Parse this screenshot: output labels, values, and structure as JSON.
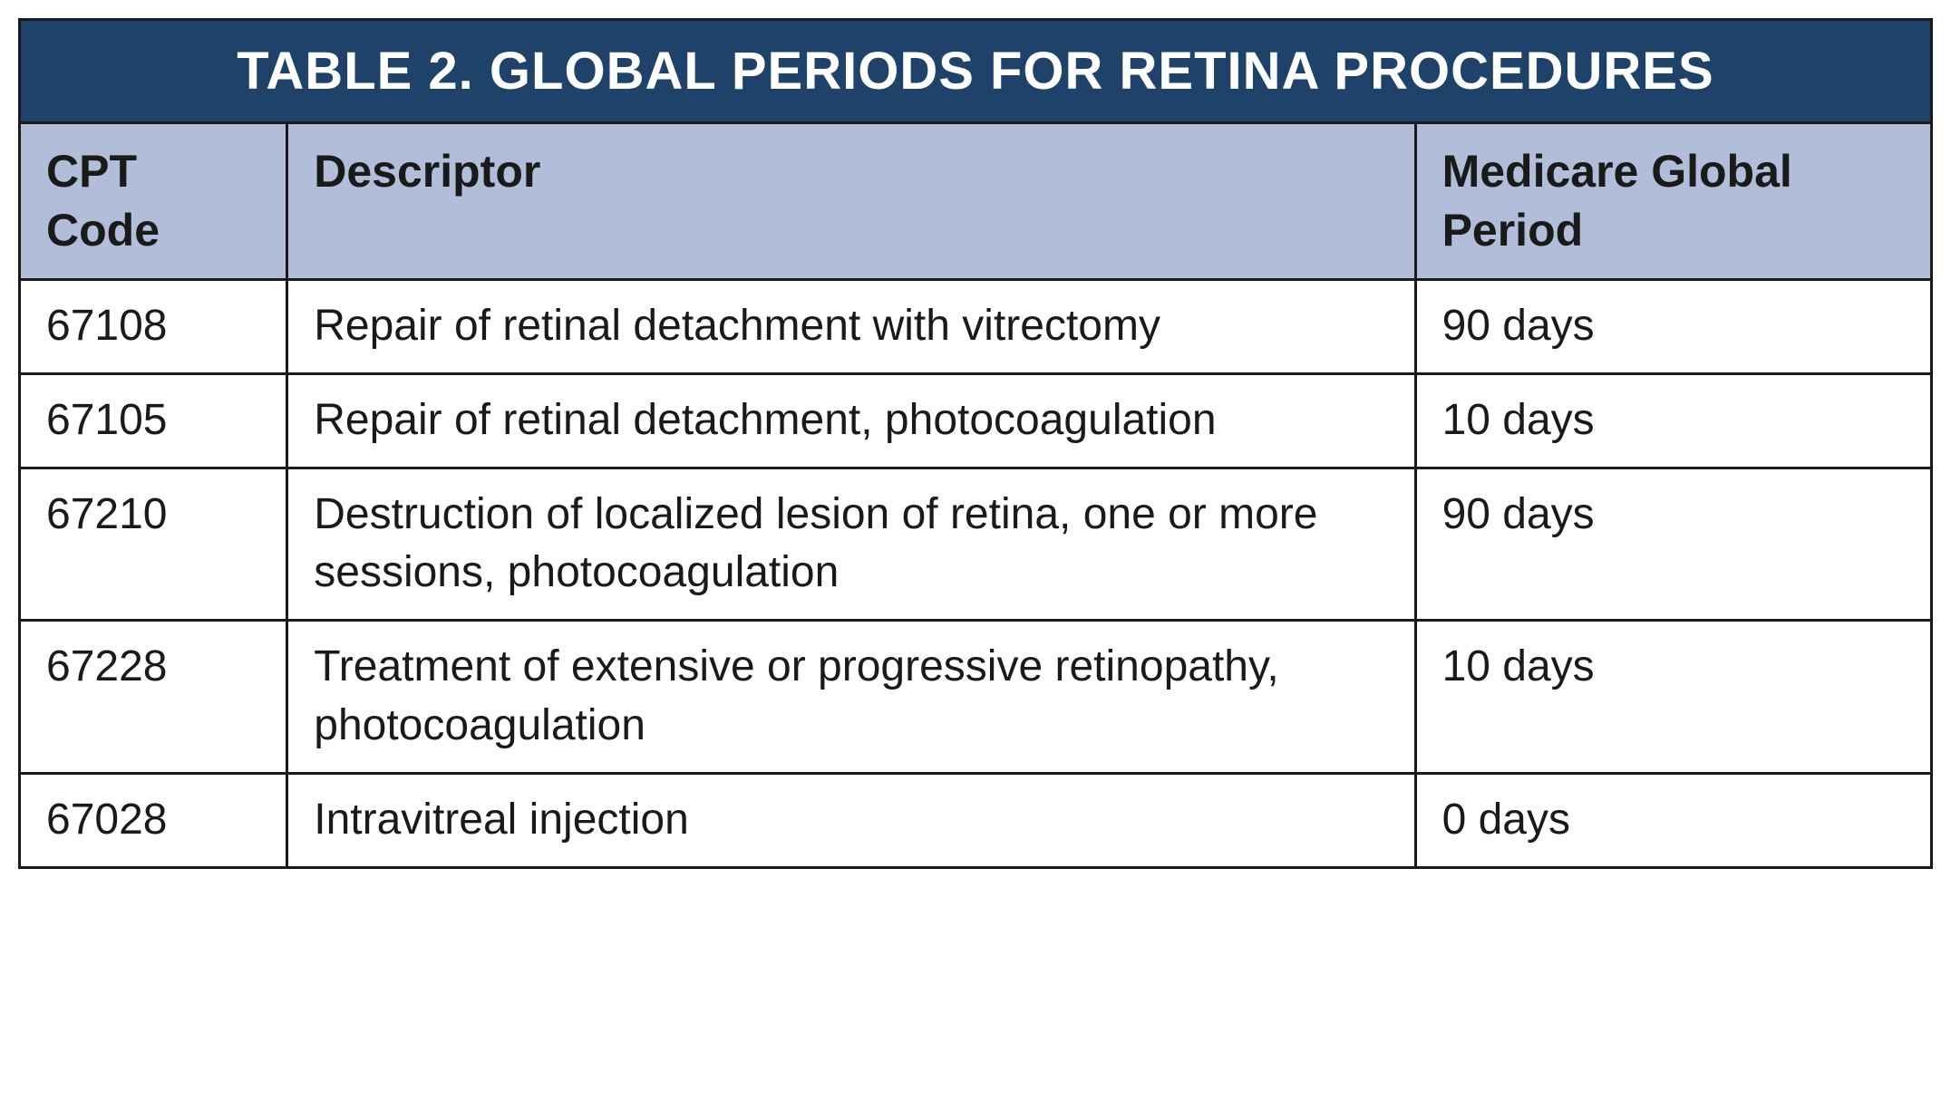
{
  "table": {
    "title": "TABLE 2. GLOBAL PERIODS FOR RETINA PROCEDURES",
    "title_background": "#1e4269",
    "title_color": "#ffffff",
    "title_fontsize": 58,
    "header_background": "#b2bdd9",
    "header_color": "#1a1a1a",
    "header_fontsize": 50,
    "cell_background": "#ffffff",
    "cell_color": "#1a1a1a",
    "cell_fontsize": 48,
    "border_color": "#1a1a1a",
    "border_width": 3,
    "columns": [
      {
        "label": "CPT Code",
        "width_pct": 14
      },
      {
        "label": "Descriptor",
        "width_pct": 59
      },
      {
        "label": "Medicare Global Period",
        "width_pct": 27
      }
    ],
    "rows": [
      {
        "code": "67108",
        "descriptor": "Repair of retinal detachment with vitrectomy",
        "period": "90 days"
      },
      {
        "code": "67105",
        "descriptor": "Repair of retinal detachment, photocoagulation",
        "period": "10 days"
      },
      {
        "code": "67210",
        "descriptor": "Destruction of localized lesion of retina, one or more sessions, photocoagulation",
        "period": "90 days"
      },
      {
        "code": "67228",
        "descriptor": "Treatment of extensive or progressive retinopathy, photocoagulation",
        "period": "10 days"
      },
      {
        "code": "67028",
        "descriptor": "Intravitreal injection",
        "period": "0 days"
      }
    ]
  }
}
